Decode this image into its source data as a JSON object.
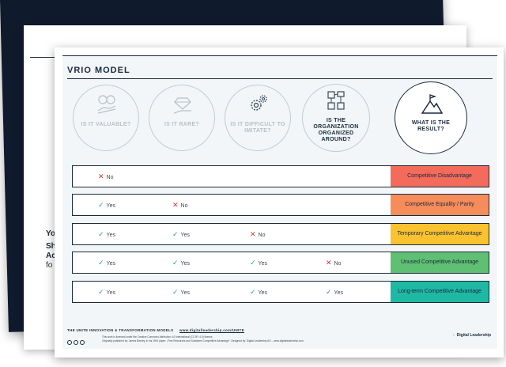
{
  "page": {
    "title": "VRIO MODEL",
    "background_sheet_text": [
      "Yo",
      "Sh",
      "Ac",
      "fo"
    ]
  },
  "questions": [
    {
      "label": "IS IT VALUABLE?",
      "icon": "money-hand-icon"
    },
    {
      "label": "IS IT RARE?",
      "icon": "diamond-hand-icon"
    },
    {
      "label": "IS IT DIFFICULT TO IMITATE?",
      "icon": "gears-icon"
    },
    {
      "label": "IS THE ORGANIZATION ORGANIZED AROUND?",
      "icon": "org-chart-icon"
    },
    {
      "label": "WHAT IS THE RESULT?",
      "icon": "mountain-flag-icon"
    }
  ],
  "rows": [
    {
      "answers": [
        "No"
      ],
      "result": "Competitive Disadvantage",
      "color": "#f26b5b"
    },
    {
      "answers": [
        "Yes",
        "No"
      ],
      "result": "Competitive Equality / Parity",
      "color": "#f58c5a"
    },
    {
      "answers": [
        "Yes",
        "Yes",
        "No"
      ],
      "result": "Temporary Competitive Advantage",
      "color": "#f9c22e"
    },
    {
      "answers": [
        "Yes",
        "Yes",
        "Yes",
        "No"
      ],
      "result": "Unused Competitive Advantage",
      "color": "#5fbf73"
    },
    {
      "answers": [
        "Yes",
        "Yes",
        "Yes",
        "Yes"
      ],
      "result": "Long-term Competitive Advantage",
      "color": "#1fb8a3"
    }
  ],
  "footer": {
    "series": "THE UNITE INNOVATION & TRANSFORMATION MODELS",
    "url": "www.digitalleadership.com/UNITE",
    "license": "This work is licensed under the Creative Commons Attribution 4.0 International (CC BY 4.0) license.",
    "credit": "Originally published by: James Barney, in his 1991 paper: „Firm Resources and Sustained Competitive Advantage\". Designed by: Digital Leadership AG – www.digitalleadership.com.",
    "brand": "Digital Leadership"
  }
}
